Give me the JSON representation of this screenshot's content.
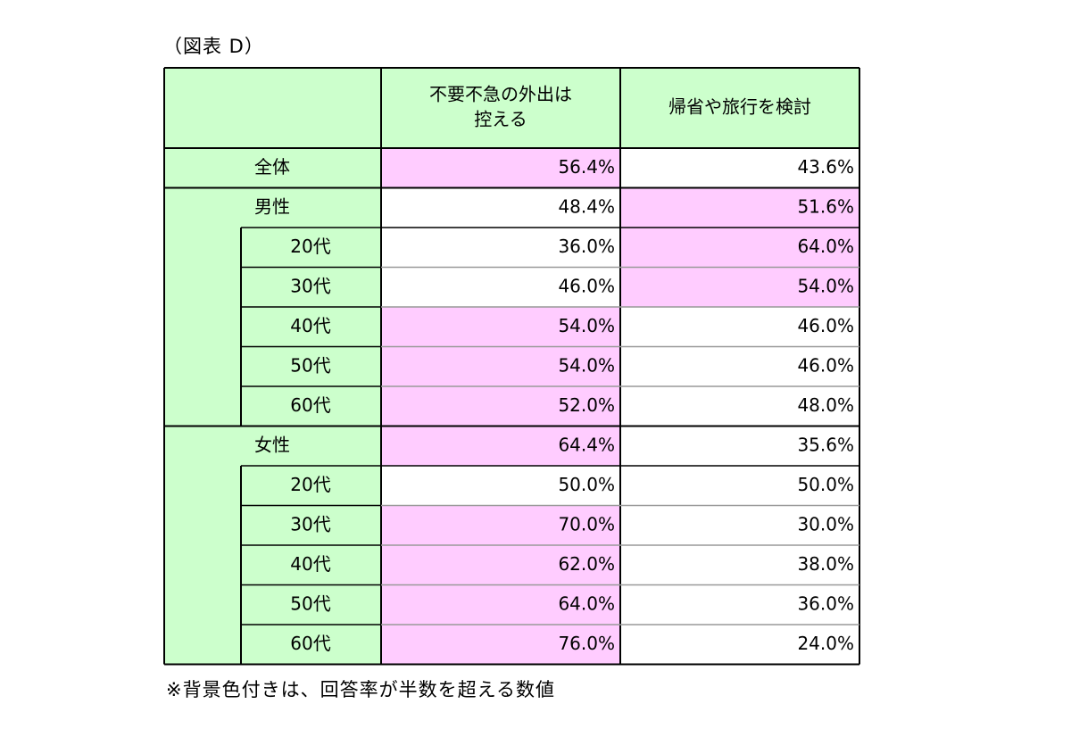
{
  "caption": "（図表 D）",
  "footnote": "※背景色付きは、回答率が半数を超える数値",
  "colors": {
    "header_bg": "#ccffcc",
    "highlight_bg": "#ffccff",
    "cell_bg": "#ffffff",
    "border": "#000000",
    "row_divider": "#999999"
  },
  "chart_data": {
    "type": "table",
    "columns": [
      "不要不急の外出は控える",
      "帰省や旅行を検討"
    ],
    "column_header_lines": [
      [
        "不要不急の外出は",
        "控える"
      ],
      [
        "帰省や旅行を検討"
      ]
    ],
    "highlight_rule": "value > 50",
    "groups": [
      {
        "label": "全体",
        "values": [
          "56.4%",
          "43.6%"
        ],
        "highlight": [
          true,
          false
        ],
        "subrows": []
      },
      {
        "label": "男性",
        "values": [
          "48.4%",
          "51.6%"
        ],
        "highlight": [
          false,
          true
        ],
        "subrows": [
          {
            "label": "20代",
            "values": [
              "36.0%",
              "64.0%"
            ],
            "highlight": [
              false,
              true
            ]
          },
          {
            "label": "30代",
            "values": [
              "46.0%",
              "54.0%"
            ],
            "highlight": [
              false,
              true
            ]
          },
          {
            "label": "40代",
            "values": [
              "54.0%",
              "46.0%"
            ],
            "highlight": [
              true,
              false
            ]
          },
          {
            "label": "50代",
            "values": [
              "54.0%",
              "46.0%"
            ],
            "highlight": [
              true,
              false
            ]
          },
          {
            "label": "60代",
            "values": [
              "52.0%",
              "48.0%"
            ],
            "highlight": [
              true,
              false
            ]
          }
        ]
      },
      {
        "label": "女性",
        "values": [
          "64.4%",
          "35.6%"
        ],
        "highlight": [
          true,
          false
        ],
        "subrows": [
          {
            "label": "20代",
            "values": [
              "50.0%",
              "50.0%"
            ],
            "highlight": [
              false,
              false
            ]
          },
          {
            "label": "30代",
            "values": [
              "70.0%",
              "30.0%"
            ],
            "highlight": [
              true,
              false
            ]
          },
          {
            "label": "40代",
            "values": [
              "62.0%",
              "38.0%"
            ],
            "highlight": [
              true,
              false
            ]
          },
          {
            "label": "50代",
            "values": [
              "64.0%",
              "36.0%"
            ],
            "highlight": [
              true,
              false
            ]
          },
          {
            "label": "60代",
            "values": [
              "76.0%",
              "24.0%"
            ],
            "highlight": [
              true,
              false
            ]
          }
        ]
      }
    ]
  }
}
